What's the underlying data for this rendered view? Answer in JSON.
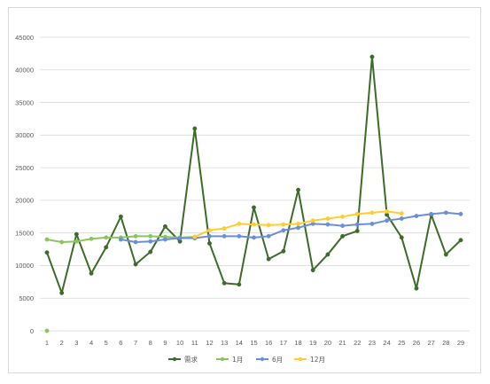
{
  "chart_data": {
    "type": "line",
    "categories": [
      "1",
      "2",
      "3",
      "4",
      "5",
      "6",
      "7",
      "8",
      "9",
      "10",
      "11",
      "12",
      "13",
      "14",
      "15",
      "16",
      "17",
      "18",
      "19",
      "20",
      "21",
      "22",
      "23",
      "24",
      "25",
      "26",
      "27",
      "28",
      "29"
    ],
    "ylim": [
      0,
      45000
    ],
    "yticks": [
      "0",
      "5000",
      "10000",
      "15000",
      "20000",
      "25000",
      "30000",
      "35000",
      "40000",
      "45000"
    ],
    "grid": true,
    "legend": "bottom",
    "series": [
      {
        "name": "需求",
        "color": "#3d6b2a",
        "values": [
          12000,
          5800,
          14800,
          8800,
          12800,
          17500,
          10200,
          12100,
          16000,
          13700,
          31000,
          13400,
          7300,
          7100,
          18900,
          11000,
          12200,
          21600,
          9300,
          11700,
          14500,
          15300,
          42000,
          17800,
          14300,
          6500,
          17800,
          11700,
          13900
        ]
      },
      {
        "name": "1月",
        "color": "#8cc45e",
        "values": [
          14000,
          13600,
          13700,
          14100,
          14300,
          14300,
          14500,
          14500,
          14400,
          14300,
          14400,
          null,
          null,
          null,
          null,
          null,
          null,
          null,
          null,
          null,
          null,
          null,
          null,
          null,
          null,
          null,
          null,
          null,
          null
        ]
      },
      {
        "name": "6月",
        "color": "#6b8fd6",
        "values": [
          null,
          null,
          null,
          null,
          null,
          14000,
          13600,
          13700,
          14000,
          14200,
          14200,
          14500,
          14500,
          14500,
          14300,
          14500,
          15400,
          15800,
          16400,
          16300,
          16100,
          16300,
          16400,
          16900,
          17200,
          17600,
          17900,
          18100,
          17900
        ]
      },
      {
        "name": "12月",
        "color": "#ffcd2f",
        "values": [
          null,
          null,
          null,
          null,
          null,
          null,
          null,
          null,
          null,
          null,
          14400,
          15400,
          15700,
          16400,
          16300,
          16200,
          16300,
          16400,
          16900,
          17200,
          17500,
          17900,
          18100,
          18300,
          18000,
          null,
          null,
          null,
          null
        ]
      },
      {
        "color": "#8cc45e",
        "values": [
          0,
          null,
          null,
          null,
          null,
          null,
          null,
          null,
          null,
          null,
          null,
          null,
          null,
          null,
          null,
          null,
          null,
          null,
          null,
          null,
          null,
          null,
          null,
          null,
          null,
          null,
          null,
          null,
          null
        ]
      }
    ]
  }
}
